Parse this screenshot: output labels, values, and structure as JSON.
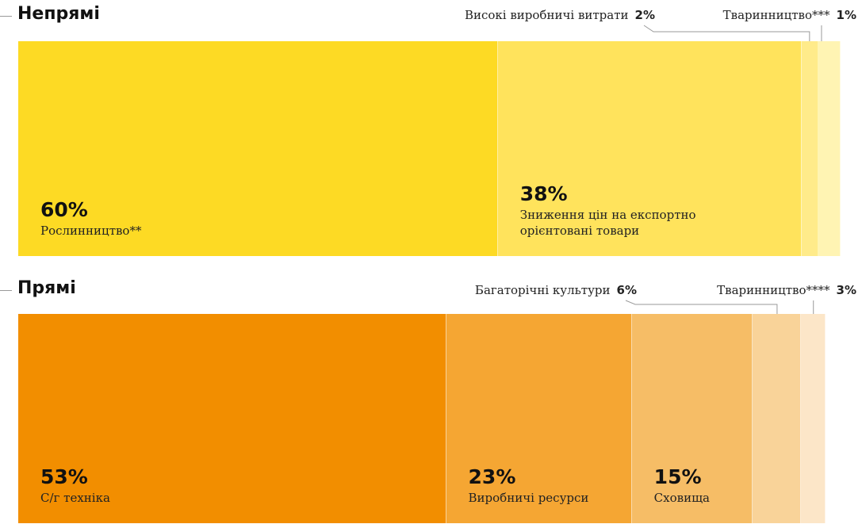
{
  "chart_data": [
    {
      "type": "stacked_bar",
      "title": "Непрямі",
      "categories": [
        "Рослинництво**",
        "Зниження цін на експортно орієнтовані товари",
        "Високі виробничі витрати",
        "Тваринництво***"
      ],
      "values": [
        60,
        38,
        2,
        1
      ],
      "value_labels": [
        "60%",
        "38%",
        "2%",
        "1%"
      ],
      "colors": [
        "#fdda24",
        "#ffe35c",
        "#ffeb8a",
        "#fff4b3"
      ]
    },
    {
      "type": "stacked_bar",
      "title": "Прямі",
      "categories": [
        "С/г техніка",
        "Виробничі ресурси",
        "Сховища",
        "Багаторічні культури",
        "Тваринництво****"
      ],
      "values": [
        53,
        23,
        15,
        6,
        3
      ],
      "value_labels": [
        "53%",
        "23%",
        "15%",
        "6%",
        "3%"
      ],
      "colors": [
        "#f28e00",
        "#f5a633",
        "#f6bd66",
        "#f9d399",
        "#fce6c8"
      ]
    }
  ]
}
